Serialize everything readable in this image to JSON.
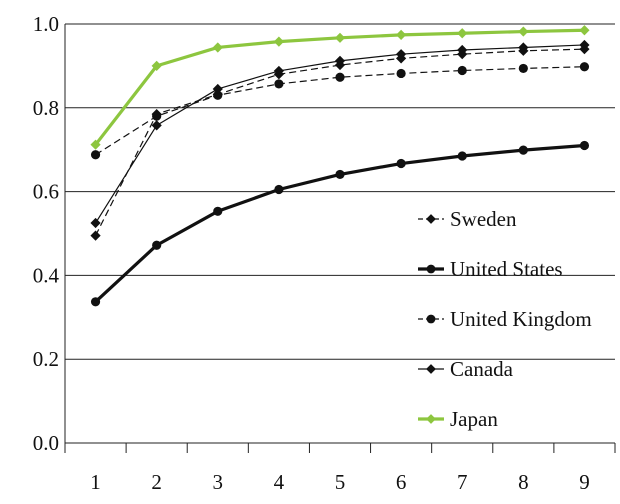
{
  "chart_data": {
    "type": "line",
    "title": "",
    "xlabel": "",
    "ylabel": "",
    "x": [
      1,
      2,
      3,
      4,
      5,
      6,
      7,
      8,
      9
    ],
    "xlim": [
      0.5,
      9.5
    ],
    "ylim": [
      0.0,
      1.0
    ],
    "yticks": [
      "0.0",
      "0.2",
      "0.4",
      "0.6",
      "0.8",
      "1.0"
    ],
    "xticks": [
      "1",
      "2",
      "3",
      "4",
      "5",
      "6",
      "7",
      "8",
      "9"
    ],
    "grid": "horizontal",
    "legend_position": "bottom-right",
    "series": [
      {
        "name": "Sweden",
        "values": [
          0.495,
          0.785,
          0.832,
          0.88,
          0.902,
          0.918,
          0.928,
          0.936,
          0.94
        ],
        "color": "#111111",
        "line_style": "dashed",
        "marker": "diamond",
        "line_weight": "thin"
      },
      {
        "name": "United States",
        "values": [
          0.337,
          0.472,
          0.553,
          0.605,
          0.641,
          0.667,
          0.685,
          0.699,
          0.71
        ],
        "color": "#111111",
        "line_style": "solid",
        "marker": "circle",
        "line_weight": "thick"
      },
      {
        "name": "United Kingdom",
        "values": [
          0.688,
          0.78,
          0.83,
          0.857,
          0.873,
          0.882,
          0.889,
          0.894,
          0.898
        ],
        "color": "#111111",
        "line_style": "dashed",
        "marker": "circle",
        "line_weight": "thin"
      },
      {
        "name": "Canada",
        "values": [
          0.525,
          0.758,
          0.845,
          0.888,
          0.912,
          0.928,
          0.938,
          0.944,
          0.95
        ],
        "color": "#111111",
        "line_style": "solid",
        "marker": "diamond",
        "line_weight": "thin"
      },
      {
        "name": "Japan",
        "values": [
          0.712,
          0.9,
          0.944,
          0.958,
          0.967,
          0.974,
          0.978,
          0.982,
          0.985
        ],
        "color": "#8dc63f",
        "line_style": "solid",
        "marker": "diamond",
        "line_weight": "thick"
      }
    ]
  }
}
